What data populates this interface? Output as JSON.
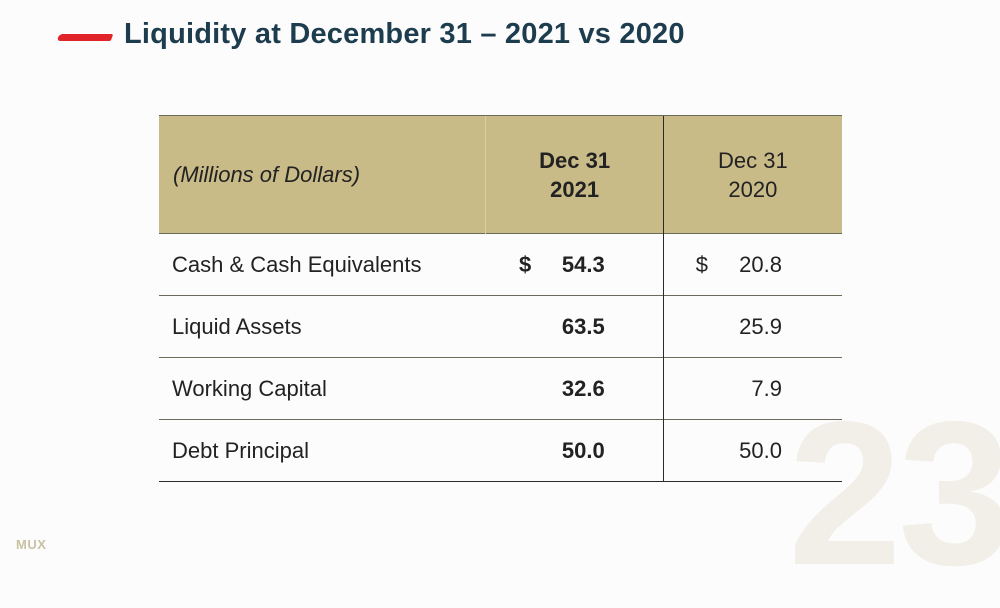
{
  "slide": {
    "title": "Liquidity at December 31 – 2021 vs 2020",
    "page_number": "23",
    "logo_text": "MUX"
  },
  "table": {
    "header": {
      "label": "(Millions of Dollars)",
      "col_2021_line1": "Dec 31",
      "col_2021_line2": "2021",
      "col_2020_line1": "Dec 31",
      "col_2020_line2": "2020"
    },
    "rows": [
      {
        "label": "Cash & Cash Equivalents",
        "sym_2021": "$",
        "v2021": "54.3",
        "sym_2020": "$",
        "v2020": "20.8"
      },
      {
        "label": "Liquid Assets",
        "sym_2021": "",
        "v2021": "63.5",
        "sym_2020": "",
        "v2020": "25.9"
      },
      {
        "label": "Working Capital",
        "sym_2021": "",
        "v2021": "32.6",
        "sym_2020": "",
        "v2020": "7.9"
      },
      {
        "label": "Debt Principal",
        "sym_2021": "",
        "v2021": "50.0",
        "sym_2020": "",
        "v2020": "50.0"
      }
    ]
  },
  "colors": {
    "title": "#1d3d4f",
    "accent": "#e0242a",
    "header_fill": "#c9bb88"
  }
}
